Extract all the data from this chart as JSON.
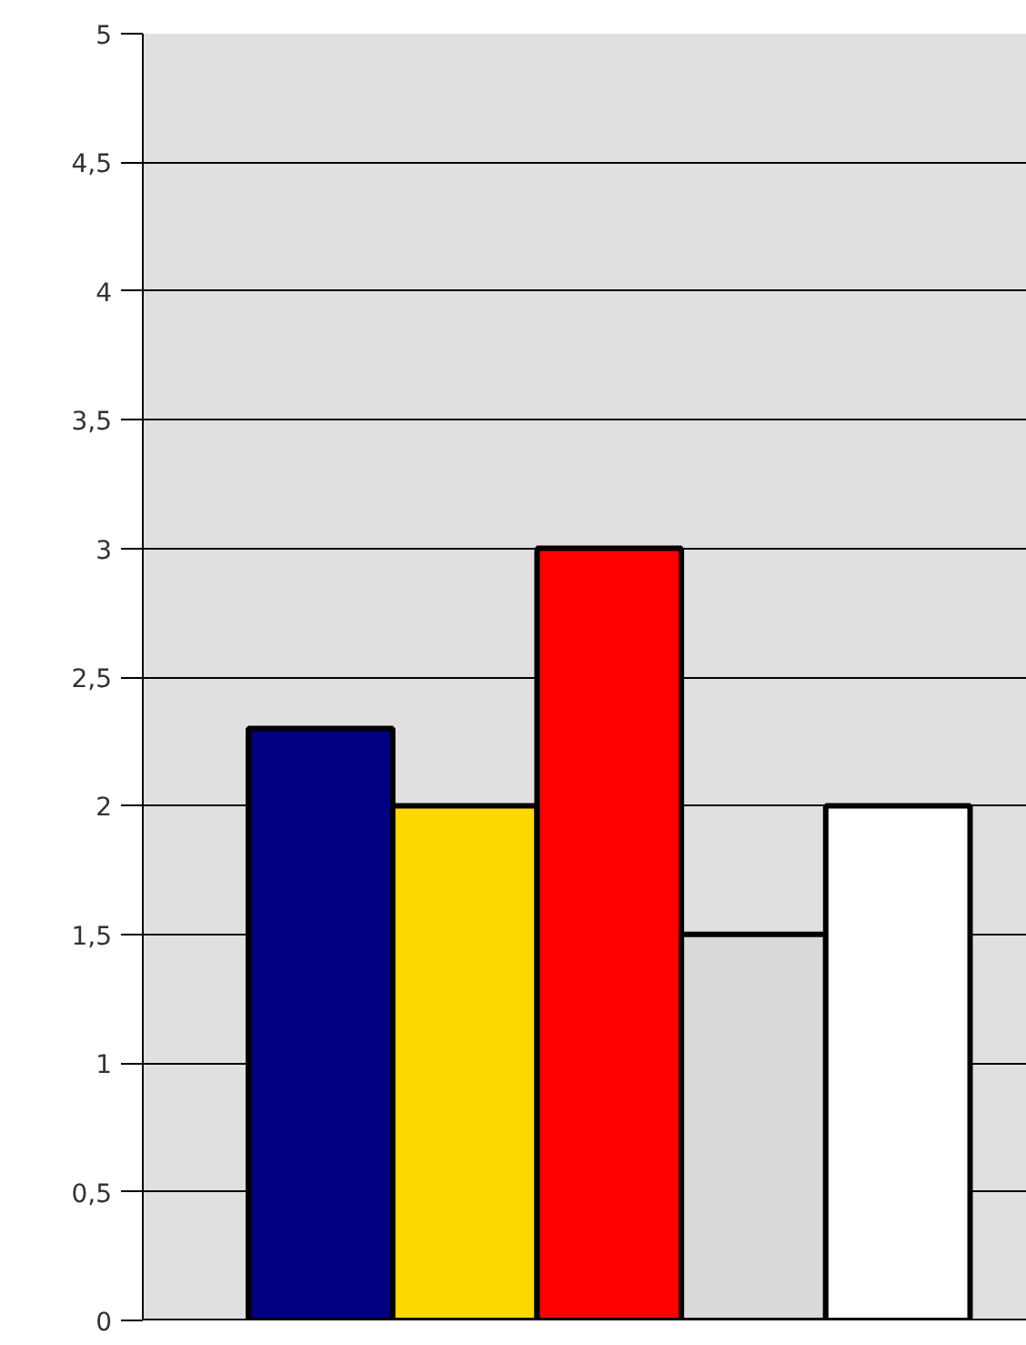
{
  "chart_data": {
    "type": "bar",
    "categories": [
      null
    ],
    "series": [
      {
        "color": "#000080",
        "values": [
          2.3
        ]
      },
      {
        "color": "#ffd700",
        "values": [
          2
        ]
      },
      {
        "color": "#ff0000",
        "values": [
          3
        ]
      },
      {
        "color": "#d9d9d9",
        "values": [
          1.5
        ]
      },
      {
        "color": "#ffffff",
        "values": [
          2
        ]
      }
    ],
    "ylim": [
      0,
      5
    ],
    "yticks": [
      0,
      {
        "value": 0.5,
        "label": "0,5"
      },
      1,
      {
        "value": 1.5,
        "label": "1,5"
      },
      2,
      {
        "value": 2.5,
        "label": "2,5"
      },
      3,
      {
        "value": 3.5,
        "label": "3,5"
      },
      4,
      {
        "value": 4.5,
        "label": "4,5"
      },
      5
    ],
    "grid": "y",
    "tick_labels": "y"
  }
}
